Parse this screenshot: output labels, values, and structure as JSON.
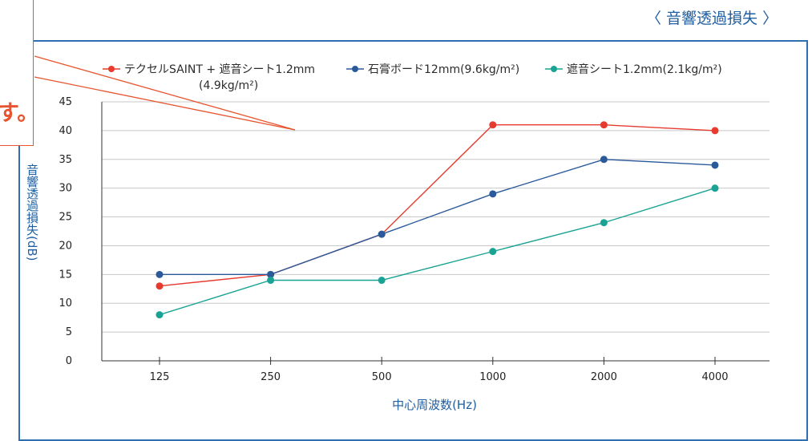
{
  "heading": "〈 音響透過損失 〉",
  "callout": {
    "visible_text": "す。",
    "color": "#e8542f"
  },
  "colors": {
    "frame": "#2d6fb0",
    "heading": "#1f5fa2"
  },
  "chart_data": {
    "type": "line",
    "categories": [
      "125",
      "250",
      "500",
      "1000",
      "2000",
      "4000"
    ],
    "series": [
      {
        "name": "テクセルSAINT + 遮音シート1.2mm",
        "name_line2": "(4.9kg/m²)",
        "color": "#e63b2e",
        "values": [
          13,
          15,
          22,
          41,
          41,
          40
        ]
      },
      {
        "name": "石膏ボード12mm(9.6kg/m²)",
        "color": "#2a5a9c",
        "values": [
          15,
          15,
          22,
          29,
          35,
          34
        ]
      },
      {
        "name": "遮音シート1.2mm(2.1kg/m²)",
        "color": "#1aa394",
        "values": [
          8,
          14,
          14,
          19,
          24,
          30
        ]
      }
    ],
    "xlabel": "中心周波数(Hz)",
    "ylabel": "音響透過損失(dB)",
    "ylim": [
      0,
      45
    ],
    "yticks": [
      "0",
      "5",
      "10",
      "15",
      "20",
      "25",
      "30",
      "35",
      "40",
      "45"
    ],
    "grid": true,
    "legend_position": "top"
  }
}
